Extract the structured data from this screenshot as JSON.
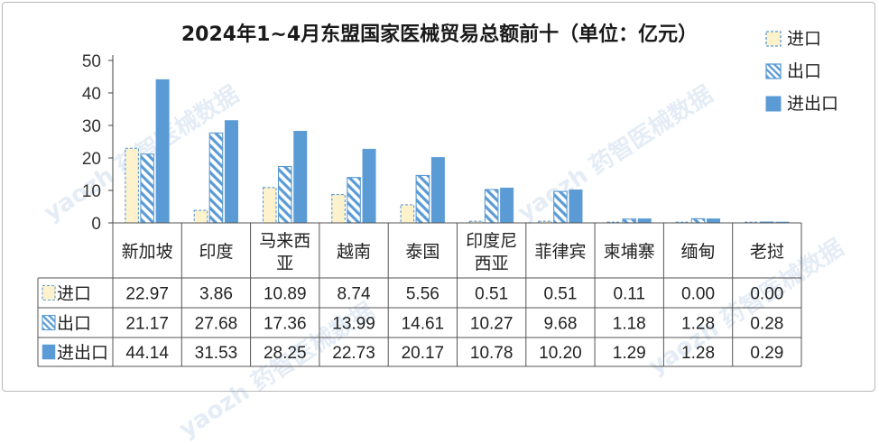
{
  "chart_data": {
    "type": "bar",
    "title": "2024年1~4月东盟国家医械贸易总额前十（单位：亿元）",
    "categories": [
      "新加坡",
      "印度",
      "马来西亚",
      "越南",
      "泰国",
      "印度尼西亚",
      "菲律宾",
      "柬埔寨",
      "缅甸",
      "老挝"
    ],
    "category_lines": [
      [
        "新加坡"
      ],
      [
        "印度"
      ],
      [
        "马来西",
        "亚"
      ],
      [
        "越南"
      ],
      [
        "泰国"
      ],
      [
        "印度尼",
        "西亚"
      ],
      [
        "菲律宾"
      ],
      [
        "柬埔寨"
      ],
      [
        "缅甸"
      ],
      [
        "老挝"
      ]
    ],
    "series": [
      {
        "name": "进口",
        "values": [
          22.97,
          3.86,
          10.89,
          8.74,
          5.56,
          0.51,
          0.51,
          0.11,
          0.0,
          0.0
        ],
        "display": [
          "22.97",
          "3.86",
          "10.89",
          "8.74",
          "5.56",
          "0.51",
          "0.51",
          "0.11",
          "0.00",
          "0.00"
        ],
        "fill": "#fdf2cc",
        "stroke": "#5b9bd5",
        "pattern": "dashed-outline"
      },
      {
        "name": "出口",
        "values": [
          21.17,
          27.68,
          17.36,
          13.99,
          14.61,
          10.27,
          9.68,
          1.18,
          1.28,
          0.28
        ],
        "display": [
          "21.17",
          "27.68",
          "17.36",
          "13.99",
          "14.61",
          "10.27",
          "9.68",
          "1.18",
          "1.28",
          "0.28"
        ],
        "fill": "#5b9bd5",
        "stroke": "#5b9bd5",
        "pattern": "diagonal-hatch"
      },
      {
        "name": "进出口",
        "values": [
          44.14,
          31.53,
          28.25,
          22.73,
          20.17,
          10.78,
          10.2,
          1.29,
          1.28,
          0.29
        ],
        "display": [
          "44.14",
          "31.53",
          "28.25",
          "22.73",
          "20.17",
          "10.78",
          "10.20",
          "1.29",
          "1.28",
          "0.29"
        ],
        "fill": "#5b9bd5",
        "stroke": "#5b9bd5",
        "pattern": "solid"
      }
    ],
    "yticks": [
      0,
      10,
      20,
      30,
      40,
      50
    ],
    "ylim": [
      0,
      50
    ],
    "xlabel": "",
    "ylabel": "",
    "grid": false,
    "legend_position": "top-right",
    "data_table": true
  },
  "watermark": "yaozh 药智医械数据"
}
